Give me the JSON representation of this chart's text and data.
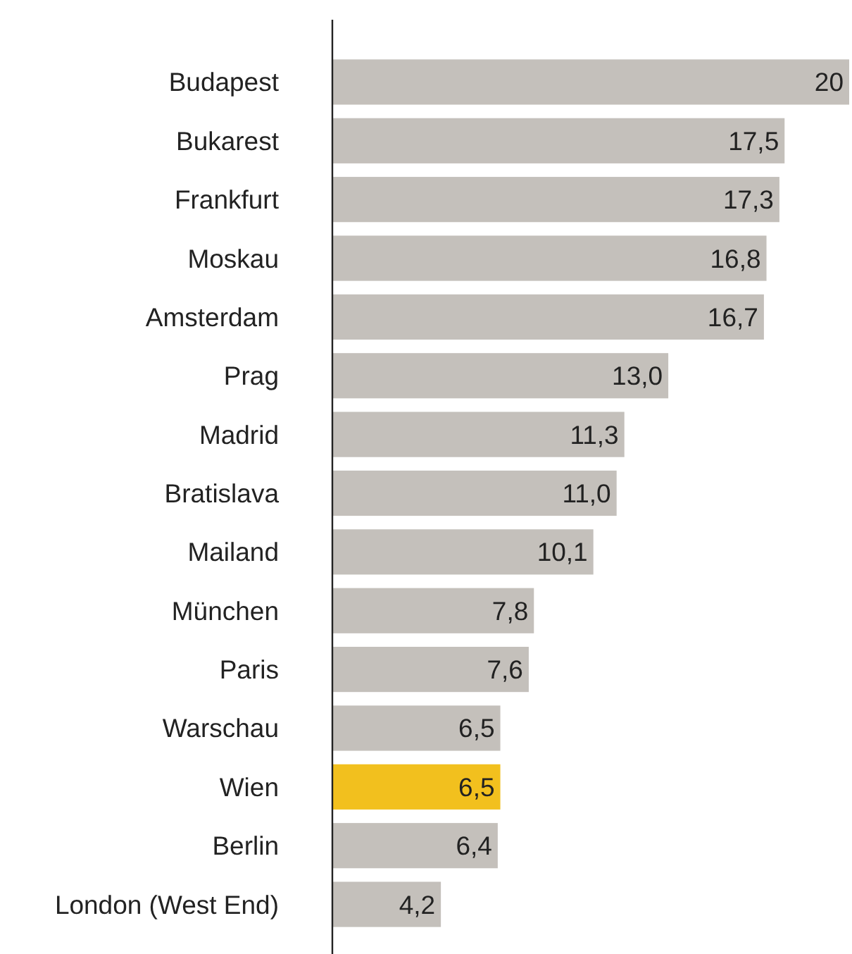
{
  "chart_data": {
    "type": "bar",
    "orientation": "horizontal",
    "categories": [
      "Budapest",
      "Bukarest",
      "Frankfurt",
      "Moskau",
      "Amsterdam",
      "Prag",
      "Madrid",
      "Bratislava",
      "Mailand",
      "München",
      "Paris",
      "Warschau",
      "Wien",
      "Berlin",
      "London (West End)"
    ],
    "values": [
      20,
      17.5,
      17.3,
      16.8,
      16.7,
      13.0,
      11.3,
      11.0,
      10.1,
      7.8,
      7.6,
      6.5,
      6.5,
      6.4,
      4.2
    ],
    "colors": [
      "#c4c0bb",
      "#c4c0bb",
      "#c4c0bb",
      "#c4c0bb",
      "#c4c0bb",
      "#c4c0bb",
      "#c4c0bb",
      "#c4c0bb",
      "#c4c0bb",
      "#c4c0bb",
      "#c4c0bb",
      "#c4c0bb",
      "#f2c01e",
      "#c4c0bb",
      "#c4c0bb"
    ],
    "value_labels": [
      "20",
      "17,5",
      "17,3",
      "16,8",
      "16,7",
      "13,0",
      "11,3",
      "11,0",
      "10,1",
      "7,8",
      "7,6",
      "6,5",
      "6,5",
      "6,4",
      "4,2"
    ]
  }
}
